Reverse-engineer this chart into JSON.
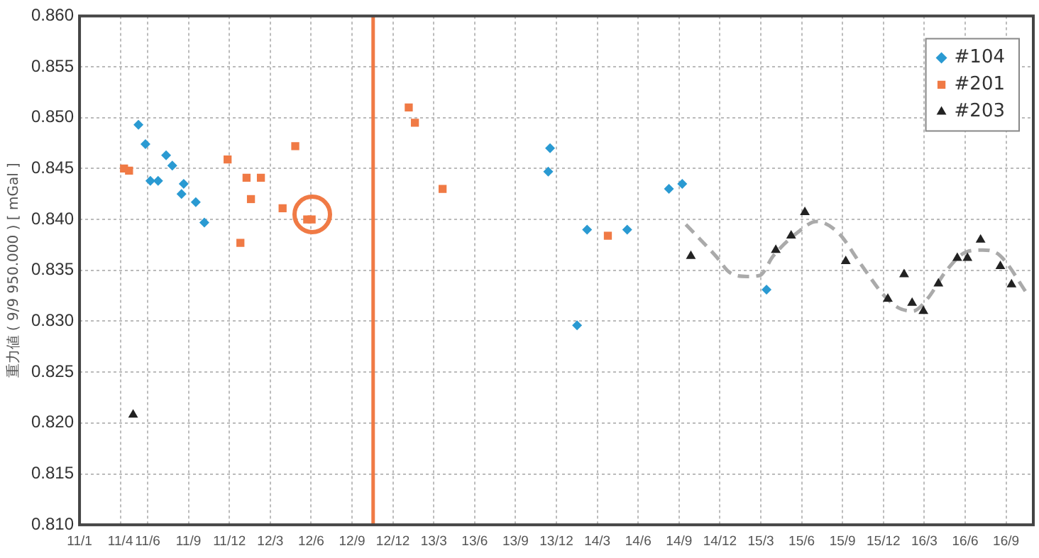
{
  "chart_data": {
    "type": "scatter",
    "ylabel": "重力値 ( 9/9 950.000 ) [ mGal ]",
    "xlim": [
      "2011-01",
      "2016-11"
    ],
    "xticks": [
      {
        "value": "2011-01",
        "label": "11/1"
      },
      {
        "value": "2011-04",
        "label": "11/4"
      },
      {
        "value": "2011-06",
        "label": "11/6"
      },
      {
        "value": "2011-09",
        "label": "11/9"
      },
      {
        "value": "2011-12",
        "label": "11/12"
      },
      {
        "value": "2012-03",
        "label": "12/3"
      },
      {
        "value": "2012-06",
        "label": "12/6"
      },
      {
        "value": "2012-09",
        "label": "12/9"
      },
      {
        "value": "2012-12",
        "label": "12/12"
      },
      {
        "value": "2013-03",
        "label": "13/3"
      },
      {
        "value": "2013-06",
        "label": "13/6"
      },
      {
        "value": "2013-09",
        "label": "13/9"
      },
      {
        "value": "2013-12",
        "label": "13/12"
      },
      {
        "value": "2014-03",
        "label": "14/3"
      },
      {
        "value": "2014-06",
        "label": "14/6"
      },
      {
        "value": "2014-09",
        "label": "14/9"
      },
      {
        "value": "2014-12",
        "label": "14/12"
      },
      {
        "value": "2015-03",
        "label": "15/3"
      },
      {
        "value": "2015-06",
        "label": "15/6"
      },
      {
        "value": "2015-09",
        "label": "15/9"
      },
      {
        "value": "2015-12",
        "label": "15/12"
      },
      {
        "value": "2016-03",
        "label": "16/3"
      },
      {
        "value": "2016-06",
        "label": "16/6"
      },
      {
        "value": "2016-09",
        "label": "16/9"
      }
    ],
    "ylim": [
      0.81,
      0.86
    ],
    "yticks": [
      {
        "value": 0.81,
        "label": "0.810"
      },
      {
        "value": 0.815,
        "label": "0.815"
      },
      {
        "value": 0.82,
        "label": "0.820"
      },
      {
        "value": 0.825,
        "label": "0.825"
      },
      {
        "value": 0.83,
        "label": "0.830"
      },
      {
        "value": 0.835,
        "label": "0.835"
      },
      {
        "value": 0.84,
        "label": "0.840"
      },
      {
        "value": 0.845,
        "label": "0.845"
      },
      {
        "value": 0.85,
        "label": "0.850"
      },
      {
        "value": 0.855,
        "label": "0.855"
      },
      {
        "value": 0.86,
        "label": "0.860"
      }
    ],
    "grid": true,
    "legend": "top right",
    "ref_lines": [
      {
        "axis": "x",
        "value": "2012-10-18",
        "color": "#f07a45"
      }
    ],
    "series": [
      {
        "name": "#104",
        "marker": "diamond",
        "color": "#2a9ad2",
        "x": [
          "2011-05-11",
          "2011-05-27",
          "2011-06-07",
          "2011-06-24",
          "2011-07-12",
          "2011-07-26",
          "2011-08-16",
          "2011-08-21",
          "2011-09-17",
          "2011-10-06",
          "2013-11-13",
          "2013-11-17",
          "2014-01-17",
          "2014-02-08",
          "2014-05-07",
          "2014-08-09",
          "2014-09-08",
          "2015-03-14"
        ],
        "values": [
          0.8493,
          0.8474,
          0.8438,
          0.8438,
          0.8463,
          0.8453,
          0.8425,
          0.8435,
          0.8417,
          0.8397,
          0.8447,
          0.847,
          0.8296,
          0.839,
          0.839,
          0.843,
          0.8435,
          0.8331
        ]
      },
      {
        "name": "#201",
        "marker": "square",
        "color": "#f07a45",
        "x": [
          "2011-04-09",
          "2011-04-20",
          "2011-11-27",
          "2011-12-26",
          "2012-01-09",
          "2012-01-19",
          "2012-02-10",
          "2012-03-29",
          "2012-04-26",
          "2012-05-23",
          "2012-06-02",
          "2013-01-06",
          "2013-01-20",
          "2013-03-21",
          "2014-03-25"
        ],
        "values": [
          0.845,
          0.8448,
          0.8459,
          0.8377,
          0.8441,
          0.842,
          0.8441,
          0.8411,
          0.8472,
          0.84,
          0.84,
          0.851,
          0.8495,
          0.843,
          0.8384
        ]
      },
      {
        "name": "#203",
        "marker": "triangle",
        "color": "#222222",
        "x": [
          "2011-04-29",
          "2014-09-27",
          "2015-04-04",
          "2015-05-08",
          "2015-06-08",
          "2015-09-08",
          "2015-12-11",
          "2016-01-17",
          "2016-02-04",
          "2016-02-28",
          "2016-04-02",
          "2016-05-14",
          "2016-06-06",
          "2016-07-05",
          "2016-08-19",
          "2016-09-13"
        ],
        "values": [
          0.8208,
          0.8364,
          0.837,
          0.8384,
          0.8407,
          0.8359,
          0.8322,
          0.8346,
          0.8318,
          0.831,
          0.8337,
          0.8362,
          0.8362,
          0.838,
          0.8354,
          0.8336
        ]
      },
      {
        "type": "line",
        "marker": "none",
        "line_style": "dashed",
        "color": "#aaaaaa",
        "x": [
          "2014-09-16",
          "2014-11-22",
          "2014-12-23",
          "2015-02-01",
          "2015-02-27",
          "2015-03-29",
          "2015-05-22",
          "2015-07-04",
          "2015-08-22",
          "2015-10-10",
          "2015-12-03",
          "2016-01-05",
          "2016-02-06",
          "2016-03-08",
          "2016-04-20",
          "2016-06-03",
          "2016-07-10",
          "2016-08-17",
          "2016-10-21"
        ],
        "values": [
          0.8395,
          0.8364,
          0.8348,
          0.8344,
          0.8345,
          0.8364,
          0.8387,
          0.8398,
          0.8387,
          0.8357,
          0.8325,
          0.8313,
          0.831,
          0.8322,
          0.835,
          0.8368,
          0.837,
          0.8365,
          0.8325
        ]
      }
    ]
  }
}
